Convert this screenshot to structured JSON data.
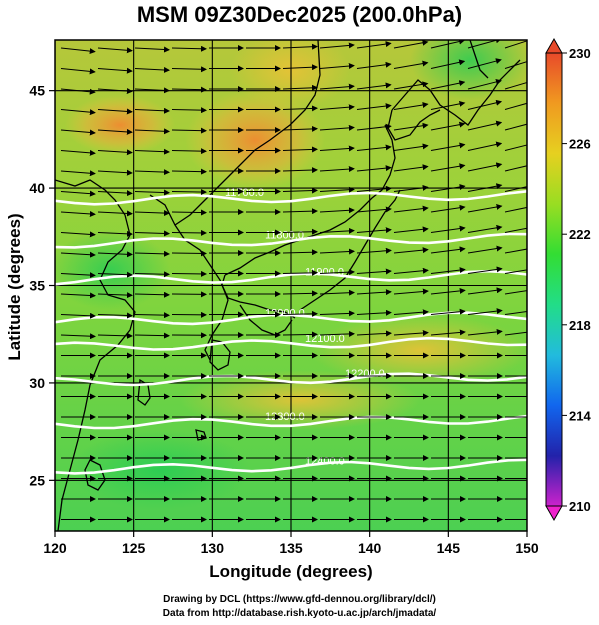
{
  "title": "MSM 09Z30Dec2025 (200.0hPa)",
  "credits": {
    "line1": "Drawing by DCL (https://www.gfd-dennou.org/library/dcl/)",
    "line2": "Data from http://database.rish.kyoto-u.ac.jp/arch/jmadata/"
  },
  "map": {
    "xlabel": "Longitude (degrees)",
    "ylabel": "Latitude  (degrees)",
    "lon_range": [
      120,
      150
    ],
    "lat_range": [
      22.4,
      47.6
    ],
    "lon_ticks": [
      120,
      125,
      130,
      135,
      140,
      145,
      150
    ],
    "lat_ticks": [
      25,
      30,
      35,
      40,
      45
    ],
    "gridlines": true,
    "contours": [
      {
        "label": "11700.0",
        "lat": 39.5
      },
      {
        "label": "11800.0",
        "lat": 37.3
      },
      {
        "label": "11900.0",
        "lat": 35.4
      },
      {
        "label": "12000.0",
        "lat": 33.3
      },
      {
        "label": "12100.0",
        "lat": 32.0
      },
      {
        "label": "12200.0",
        "lat": 30.2
      },
      {
        "label": "12300.0",
        "lat": 28.0
      },
      {
        "label": "12400.0",
        "lat": 25.7
      }
    ],
    "contour_labels": [
      "11700.0",
      "11800.0",
      "11900.0",
      "12000.0",
      "12100.0",
      "12200.0",
      "12300.0",
      "12400.0"
    ],
    "vectors": "westerly wind arrows",
    "field": "temperature shading"
  },
  "colorbar": {
    "min": 210,
    "max": 230,
    "ticks": [
      210,
      214,
      218,
      222,
      226,
      230
    ],
    "colors": [
      "#cc22cc",
      "#2222aa",
      "#1166ee",
      "#22bbdd",
      "#22dd88",
      "#33dd33",
      "#99dd22",
      "#e6d020",
      "#f09a20",
      "#e84a2a"
    ]
  }
}
